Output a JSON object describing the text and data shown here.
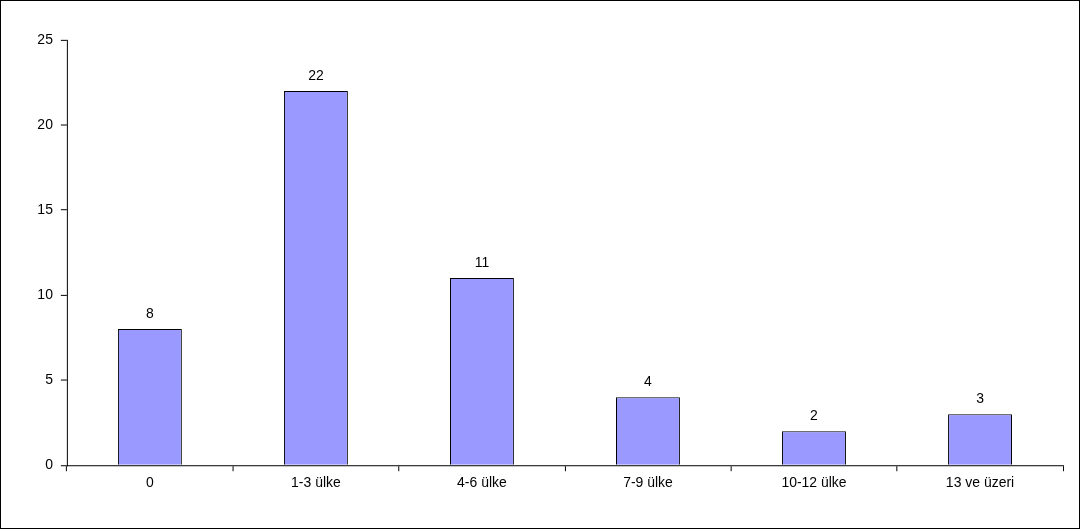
{
  "chart_data": {
    "type": "bar",
    "categories": [
      "0",
      "1-3 ülke",
      "4-6 ülke",
      "7-9 ülke",
      "10-12 ülke",
      "13 ve üzeri"
    ],
    "values": [
      8,
      22,
      11,
      4,
      2,
      3
    ],
    "color": "#9999ff",
    "ylim": [
      0,
      25
    ],
    "yticks": [
      0,
      5,
      10,
      15,
      20,
      25
    ],
    "grid": false,
    "legend": false,
    "data_labels": true
  }
}
